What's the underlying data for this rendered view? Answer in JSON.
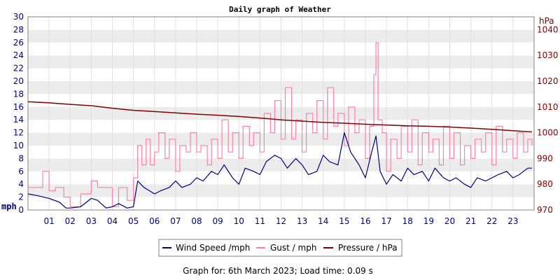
{
  "chart_data": {
    "type": "line",
    "title": "Daily graph of Weather",
    "left_axis": {
      "unit": "mph",
      "range": [
        0,
        30
      ],
      "ticks": [
        "0",
        "2",
        "4",
        "6",
        "8",
        "10",
        "12",
        "14",
        "16",
        "18",
        "20",
        "22",
        "24",
        "26",
        "28",
        "30"
      ]
    },
    "right_axis": {
      "unit": "hPa",
      "range": [
        970,
        1045
      ],
      "ticks": [
        "970",
        "980",
        "990",
        "1000",
        "1010",
        "1020",
        "1030",
        "1040"
      ]
    },
    "x_axis": {
      "range": [
        0,
        24
      ],
      "ticks": [
        "01",
        "02",
        "03",
        "04",
        "05",
        "06",
        "07",
        "08",
        "09",
        "10",
        "11",
        "12",
        "13",
        "14",
        "15",
        "16",
        "17",
        "18",
        "19",
        "20",
        "21",
        "22",
        "23"
      ]
    },
    "grid": true,
    "legend_position": "bottom",
    "series": [
      {
        "name": "Wind Speed /mph",
        "color": "#000080",
        "axis": "left",
        "x": [
          0,
          0.5,
          1,
          1.5,
          1.8,
          2,
          2.5,
          3,
          3.3,
          3.7,
          4,
          4.3,
          4.7,
          5,
          5.2,
          5.5,
          6,
          6.3,
          6.7,
          7,
          7.3,
          7.7,
          8,
          8.3,
          8.7,
          9,
          9.3,
          9.7,
          10,
          10.3,
          10.7,
          11,
          11.3,
          11.7,
          12,
          12.3,
          12.7,
          13,
          13.3,
          13.7,
          14,
          14.3,
          14.7,
          15,
          15.3,
          15.7,
          16,
          16.3,
          16.5,
          16.7,
          17,
          17.3,
          17.7,
          18,
          18.3,
          18.7,
          19,
          19.3,
          19.7,
          20,
          20.3,
          20.7,
          21,
          21.3,
          21.7,
          22,
          22.3,
          22.7,
          23,
          23.3,
          23.7,
          23.9
        ],
        "values": [
          2.5,
          2.2,
          1.8,
          1.2,
          0.3,
          0.3,
          0.5,
          1.8,
          1.5,
          0.3,
          0.5,
          1.0,
          0.3,
          0.5,
          4.5,
          3.5,
          2.5,
          3.0,
          3.5,
          4.5,
          3.5,
          4.0,
          5.0,
          4.5,
          6.0,
          5.5,
          7.0,
          5.0,
          4.0,
          6.5,
          6.0,
          5.5,
          7.5,
          8.5,
          8.0,
          6.5,
          8.0,
          7.0,
          5.5,
          6.0,
          8.5,
          7.5,
          7.0,
          12.0,
          9.0,
          7.0,
          5.0,
          9.0,
          11.5,
          6.0,
          4.0,
          5.5,
          4.5,
          6.5,
          5.5,
          6.0,
          4.5,
          6.5,
          5.0,
          4.5,
          5.0,
          4.0,
          3.5,
          5.0,
          4.5,
          5.0,
          5.5,
          6.0,
          5.0,
          5.5,
          6.5,
          6.5
        ]
      },
      {
        "name": "Gust / mph",
        "color": "#ff80a0",
        "axis": "left",
        "x": [
          0,
          0.4,
          0.7,
          1,
          1.3,
          1.7,
          2,
          2.5,
          3,
          3.3,
          3.7,
          4,
          4.3,
          4.7,
          5,
          5.2,
          5.4,
          5.6,
          5.8,
          6,
          6.2,
          6.5,
          6.7,
          7,
          7.2,
          7.5,
          7.7,
          8,
          8.2,
          8.5,
          8.7,
          9,
          9.2,
          9.5,
          9.7,
          10,
          10.2,
          10.5,
          10.7,
          11,
          11.2,
          11.5,
          11.7,
          12,
          12.2,
          12.5,
          12.7,
          13,
          13.2,
          13.5,
          13.7,
          14,
          14.2,
          14.5,
          14.7,
          15,
          15.2,
          15.5,
          15.7,
          16,
          16.2,
          16.4,
          16.5,
          16.6,
          16.8,
          17,
          17.2,
          17.5,
          17.7,
          18,
          18.2,
          18.5,
          18.7,
          19,
          19.2,
          19.5,
          19.7,
          20,
          20.2,
          20.5,
          20.7,
          21,
          21.2,
          21.5,
          21.7,
          22,
          22.2,
          22.5,
          22.7,
          23,
          23.2,
          23.5,
          23.7,
          23.9
        ],
        "values": [
          3.5,
          3.5,
          6,
          3,
          3.5,
          2,
          0.5,
          2.5,
          4.5,
          3.5,
          3.5,
          0.5,
          3.5,
          1.5,
          5,
          10,
          7,
          11,
          7,
          9,
          12,
          8,
          11,
          6,
          10,
          9,
          12,
          9,
          10,
          7,
          11,
          8,
          14,
          9,
          12,
          8,
          13,
          10,
          12,
          9,
          15,
          12,
          17,
          11,
          19,
          11,
          14,
          9,
          15,
          12,
          17,
          11,
          19,
          13,
          15,
          10,
          16,
          12,
          14,
          8,
          13,
          21,
          26,
          14,
          12,
          6,
          11,
          8,
          13,
          9,
          14,
          7,
          12,
          9,
          11,
          7,
          13,
          8,
          12,
          7,
          10,
          8,
          11,
          9,
          12,
          7,
          13,
          9,
          11,
          8,
          12,
          9,
          11,
          10
        ],
        "gust_extra_peaks": []
      },
      {
        "name": "Pressure / hPa",
        "color": "#800000",
        "axis": "right",
        "x": [
          0,
          1,
          2,
          3,
          4,
          5,
          6,
          7,
          8,
          9,
          10,
          11,
          12,
          13,
          14,
          15,
          16,
          17,
          18,
          19,
          20,
          21,
          22,
          23,
          23.9
        ],
        "values": [
          1012,
          1011.6,
          1011,
          1010.5,
          1009.5,
          1008.7,
          1008.2,
          1007.7,
          1007.2,
          1006.8,
          1006.3,
          1005.7,
          1005,
          1004.5,
          1004,
          1003.7,
          1003.3,
          1003,
          1002.7,
          1002.5,
          1002.2,
          1001.8,
          1001.3,
          1000.8,
          1000.3
        ]
      }
    ]
  },
  "footer": "Graph for: 6th March 2023; Load time: 0.09 s"
}
